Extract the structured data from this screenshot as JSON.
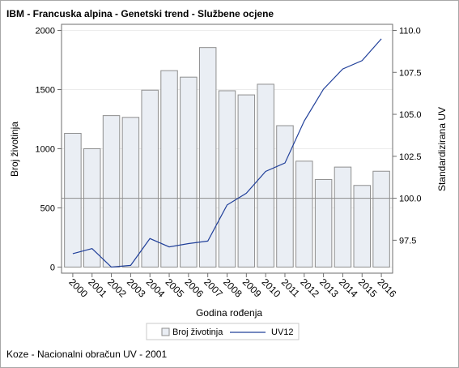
{
  "title": "IBM - Francuska alpina - Genetski trend - Službene ocjene",
  "footnote": "Koze - Nacionalni obračun UV - 2001",
  "chart_data": {
    "type": "bar",
    "title": "IBM - Francuska alpina - Genetski trend - Službene ocjene",
    "xlabel": "Godina rođenja",
    "ylabel": "Broj životinja",
    "y2label": "Standardizirana UV",
    "categories": [
      "2000",
      "2001",
      "2002",
      "2003",
      "2004",
      "2005",
      "2006",
      "2007",
      "2008",
      "2009",
      "2010",
      "2011",
      "2012",
      "2013",
      "2014",
      "2015",
      "2016"
    ],
    "series": [
      {
        "name": "Broj životinja",
        "type": "bar",
        "axis": "left",
        "color": "#eaeef4",
        "values": [
          1130,
          1000,
          1280,
          1265,
          1495,
          1660,
          1605,
          1855,
          1490,
          1455,
          1545,
          1195,
          895,
          740,
          845,
          690,
          810
        ]
      },
      {
        "name": "UV12",
        "type": "line",
        "axis": "right",
        "color": "#21409a",
        "values": [
          96.7,
          97.0,
          95.9,
          96.0,
          97.6,
          97.1,
          97.3,
          97.45,
          99.6,
          100.3,
          101.6,
          102.1,
          104.6,
          106.5,
          107.7,
          108.2,
          109.5
        ]
      }
    ],
    "ylim": [
      0,
      2000
    ],
    "yticks": [
      0,
      500,
      1000,
      1500,
      2000
    ],
    "y2lim": [
      95.9,
      110.0
    ],
    "y2ticks": [
      97.5,
      100.0,
      102.5,
      105.0,
      107.5,
      110.0
    ],
    "y2ticklabels": [
      "97.5",
      "100.0",
      "102.5",
      "105.0",
      "107.5",
      "110.0"
    ],
    "reference_line_y2": 100.0,
    "grid": true,
    "legend_position": "bottom"
  }
}
